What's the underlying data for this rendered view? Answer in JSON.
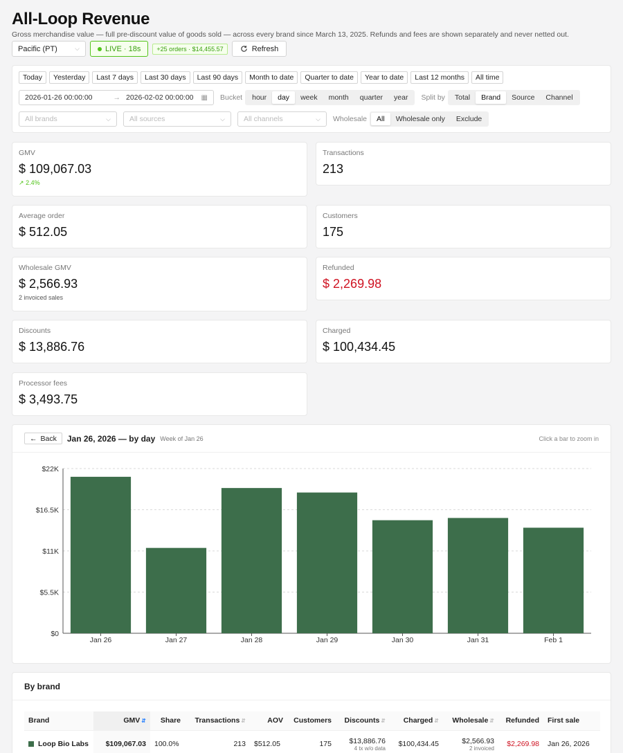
{
  "header": {
    "title": "All-Loop Revenue",
    "subtitle": "Gross merchandise value — full pre-discount value of goods sold — across every brand since March 13, 2025. Refunds and fees are shown separately and never netted out.",
    "timezone": "Pacific (PT)",
    "live_label": "LIVE · 18s",
    "orders_tag": "+25 orders · $14,455.57",
    "refresh_label": "Refresh"
  },
  "filters": {
    "ranges": [
      "Today",
      "Yesterday",
      "Last 7 days",
      "Last 30 days",
      "Last 90 days",
      "Month to date",
      "Quarter to date",
      "Year to date",
      "Last 12 months",
      "All time"
    ],
    "date_start": "2026-01-26 00:00:00",
    "date_end": "2026-02-02 00:00:00",
    "bucket_label": "Bucket",
    "buckets": [
      "hour",
      "day",
      "week",
      "month",
      "quarter",
      "year"
    ],
    "bucket_active": "day",
    "split_label": "Split by",
    "splits": [
      "Total",
      "Brand",
      "Source",
      "Channel"
    ],
    "split_active": "Brand",
    "brands_placeholder": "All brands",
    "sources_placeholder": "All sources",
    "channels_placeholder": "All channels",
    "wholesale_label": "Wholesale",
    "wholesale_opts": [
      "All",
      "Wholesale only",
      "Exclude"
    ],
    "wholesale_active": "All"
  },
  "stats": {
    "gmv": {
      "label": "GMV",
      "value": "109,067.03",
      "sub": "2.4%"
    },
    "transactions": {
      "label": "Transactions",
      "value": "213"
    },
    "aov": {
      "label": "Average order",
      "value": "512.05"
    },
    "customers": {
      "label": "Customers",
      "value": "175"
    },
    "wholesale": {
      "label": "Wholesale GMV",
      "value": "2,566.93",
      "sub": "2 invoiced sales"
    },
    "refunded": {
      "label": "Refunded",
      "value": "2,269.98"
    },
    "discounts": {
      "label": "Discounts",
      "value": "13,886.76"
    },
    "charged": {
      "label": "Charged",
      "value": "100,434.45"
    },
    "fees": {
      "label": "Processor fees",
      "value": "3,493.75"
    },
    "currency": "$"
  },
  "chart": {
    "back_label": "Back",
    "title": "Jan 26, 2026 — by day",
    "week_label": "Week of Jan 26",
    "hint": "Click a bar to zoom in",
    "bar_color": "#3d6e4b"
  },
  "chart_data": {
    "type": "bar",
    "categories": [
      "Jan 26",
      "Jan 27",
      "Jan 28",
      "Jan 29",
      "Jan 30",
      "Jan 31",
      "Feb 1"
    ],
    "values": [
      20900,
      11400,
      19400,
      18800,
      15100,
      15400,
      14100
    ],
    "yticks": [
      "$0",
      "$5.5K",
      "$11K",
      "$16.5K",
      "$22K"
    ],
    "ylim": [
      0,
      22000
    ],
    "grid": true
  },
  "brand_table": {
    "title": "By brand",
    "columns": [
      "Brand",
      "GMV",
      "Share",
      "Transactions",
      "AOV",
      "Customers",
      "Discounts",
      "Charged",
      "Wholesale",
      "Refunded",
      "First sale"
    ],
    "rows": [
      {
        "brand": "Loop Bio Labs",
        "color": "#3d6e4b",
        "gmv": "$109,067.03",
        "share": "100.0%",
        "transactions": "213",
        "aov": "$512.05",
        "customers": "175",
        "discounts": "$13,886.76",
        "discounts_sub": "4 tx w/o data",
        "charged": "$100,434.45",
        "wholesale": "$2,566.93",
        "wholesale_sub": "2 invoiced",
        "refunded": "$2,269.98",
        "first_sale": "Jan 26, 2026"
      }
    ]
  }
}
